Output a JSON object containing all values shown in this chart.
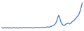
{
  "line_color": "#4472c4",
  "background_color": "#ffffff",
  "line_width": 0.9,
  "y_values": [
    3.2,
    3.0,
    2.8,
    3.1,
    3.3,
    2.9,
    3.0,
    3.2,
    2.8,
    3.0,
    3.1,
    2.9,
    3.0,
    3.2,
    3.1,
    2.9,
    3.0,
    3.1,
    2.8,
    3.0,
    3.2,
    3.0,
    2.9,
    3.1,
    3.3,
    3.0,
    3.1,
    3.2,
    3.0,
    3.1,
    3.0,
    3.2,
    3.1,
    3.0,
    2.9,
    3.1,
    3.0,
    3.2,
    3.1,
    3.3,
    3.2,
    3.0,
    3.1,
    3.2,
    3.3,
    3.1,
    3.2,
    3.3,
    3.5,
    3.4,
    3.6,
    3.8,
    3.5,
    3.7,
    3.9,
    4.2,
    4.5,
    4.8,
    5.2,
    5.8,
    6.8,
    8.5,
    10.5,
    12.0,
    10.5,
    8.0,
    6.5,
    5.5,
    5.0,
    4.8,
    5.2,
    5.8,
    6.0,
    6.5,
    6.2,
    5.8,
    6.2,
    7.0,
    7.5,
    8.0,
    8.5,
    9.2,
    10.0,
    10.8,
    11.5,
    12.5,
    14.0,
    16.0,
    18.5,
    21.0
  ]
}
